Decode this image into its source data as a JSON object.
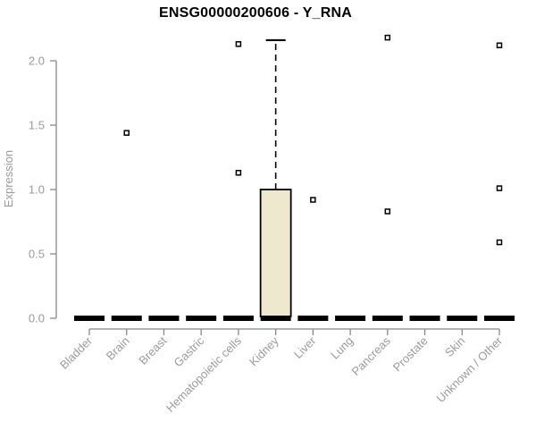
{
  "title": "ENSG00000200606 - Y_RNA",
  "colors": {
    "background": "#ffffff",
    "box_fill": "#ede8ce",
    "box_border": "#000000",
    "axis_line": "#888888",
    "muted_text": "#9b9b9b",
    "title_text": "#000000",
    "outlier_fill": "#ffffff"
  },
  "chart_data": {
    "type": "boxplot",
    "title": "ENSG00000200606 - Y_RNA",
    "xlabel": "",
    "ylabel": "Expression",
    "ylim": [
      0,
      2.2
    ],
    "y_ticks": [
      0.0,
      0.5,
      1.0,
      1.5,
      2.0
    ],
    "grid": "off",
    "legend": "none",
    "categories": [
      "Bladder",
      "Brain",
      "Breast",
      "Gastric",
      "Hematopoietic cells",
      "Kidney",
      "Liver",
      "Lung",
      "Pancreas",
      "Prostate",
      "Skin",
      "Unknown / Other"
    ],
    "boxes": [
      {
        "category": "Bladder",
        "whisker_low": 0,
        "q1": 0,
        "median": 0,
        "q3": 0,
        "whisker_high": 0,
        "outliers": []
      },
      {
        "category": "Brain",
        "whisker_low": 0,
        "q1": 0,
        "median": 0,
        "q3": 0,
        "whisker_high": 0,
        "outliers": [
          1.44
        ]
      },
      {
        "category": "Breast",
        "whisker_low": 0,
        "q1": 0,
        "median": 0,
        "q3": 0,
        "whisker_high": 0,
        "outliers": []
      },
      {
        "category": "Gastric",
        "whisker_low": 0,
        "q1": 0,
        "median": 0,
        "q3": 0,
        "whisker_high": 0,
        "outliers": []
      },
      {
        "category": "Hematopoietic cells",
        "whisker_low": 0,
        "q1": 0,
        "median": 0,
        "q3": 0,
        "whisker_high": 0,
        "outliers": [
          2.13,
          1.13
        ]
      },
      {
        "category": "Kidney",
        "whisker_low": 0,
        "q1": 0,
        "median": 0,
        "q3": 1.0,
        "whisker_high": 2.16,
        "outliers": []
      },
      {
        "category": "Liver",
        "whisker_low": 0,
        "q1": 0,
        "median": 0,
        "q3": 0,
        "whisker_high": 0,
        "outliers": [
          0.92
        ]
      },
      {
        "category": "Lung",
        "whisker_low": 0,
        "q1": 0,
        "median": 0,
        "q3": 0,
        "whisker_high": 0,
        "outliers": []
      },
      {
        "category": "Pancreas",
        "whisker_low": 0,
        "q1": 0,
        "median": 0,
        "q3": 0,
        "whisker_high": 0,
        "outliers": [
          2.18,
          0.83
        ]
      },
      {
        "category": "Prostate",
        "whisker_low": 0,
        "q1": 0,
        "median": 0,
        "q3": 0,
        "whisker_high": 0,
        "outliers": []
      },
      {
        "category": "Skin",
        "whisker_low": 0,
        "q1": 0,
        "median": 0,
        "q3": 0,
        "whisker_high": 0,
        "outliers": []
      },
      {
        "category": "Unknown / Other",
        "whisker_low": 0,
        "q1": 0,
        "median": 0,
        "q3": 0,
        "whisker_high": 0,
        "outliers": [
          2.12,
          1.01,
          0.59
        ]
      }
    ]
  }
}
